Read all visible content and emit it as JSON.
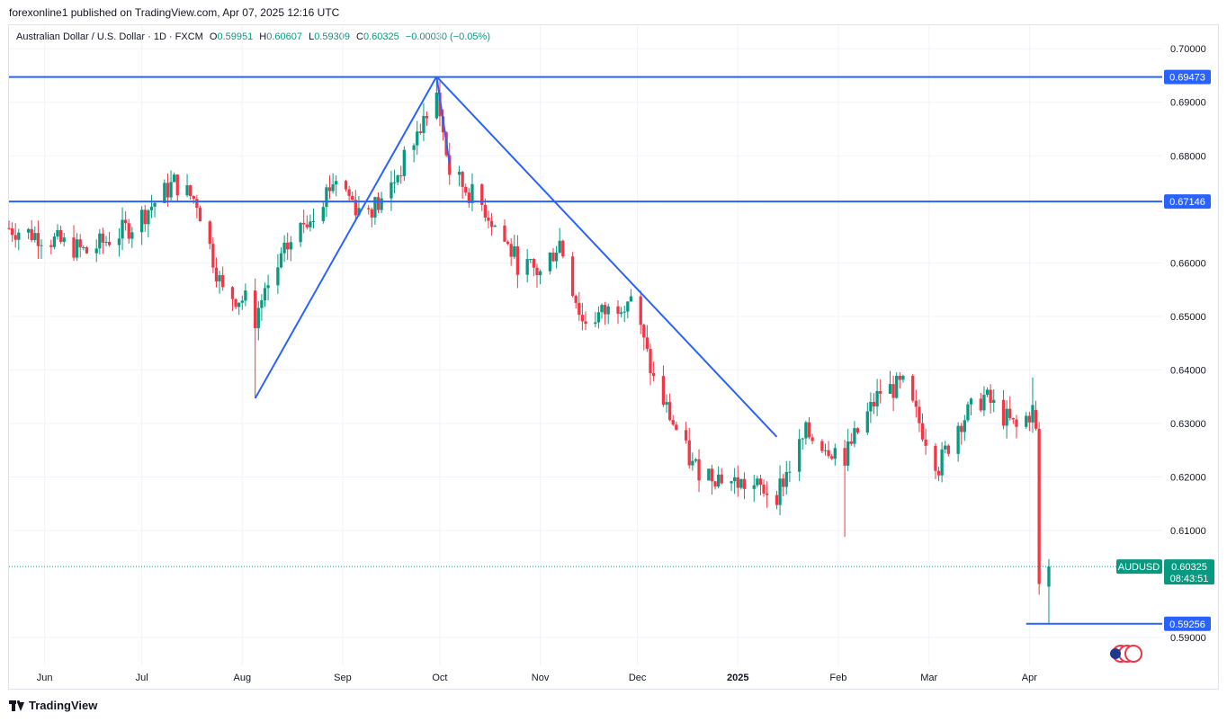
{
  "header": {
    "publisher_line": "forexonline1 published on TradingView.com, Apr 07, 2025 12:16 UTC"
  },
  "legend": {
    "symbol": "Australian Dollar / U.S. Dollar · 1D · FXCM",
    "open_label": "O",
    "open": "0.59951",
    "high_label": "H",
    "high": "0.60607",
    "low_label": "L",
    "low": "0.59309",
    "close_label": "C",
    "close": "0.60325",
    "change": "−0.00030 (−0.05%)"
  },
  "footer": {
    "brand": "TradingView"
  },
  "colors": {
    "up": "#089981",
    "down": "#f23645",
    "trendline": "#2962ff",
    "grid": "#f0f3fa"
  },
  "chart_data": {
    "type": "candlestick",
    "ylim": [
      0.5848,
      0.7044
    ],
    "y_ticks": [
      "0.70000",
      "0.69000",
      "0.68000",
      "0.66000",
      "0.65000",
      "0.64000",
      "0.63000",
      "0.62000",
      "0.61000",
      "0.59000"
    ],
    "y_tick_values": [
      0.7,
      0.69,
      0.68,
      0.66,
      0.65,
      0.64,
      0.63,
      0.62,
      0.61,
      0.59
    ],
    "x_ticks": [
      "Jun",
      "Jul",
      "Aug",
      "Sep",
      "Oct",
      "Nov",
      "Dec",
      "2025",
      "Feb",
      "Mar",
      "Apr"
    ],
    "x_tick_dates": [
      "2024-06-01",
      "2024-07-01",
      "2024-08-01",
      "2024-09-01",
      "2024-10-01",
      "2024-11-01",
      "2024-12-01",
      "2025-01-01",
      "2025-02-01",
      "2025-03-01",
      "2025-04-01"
    ],
    "x_range": [
      "2024-05-21",
      "2025-05-12"
    ],
    "horizontal_levels": [
      {
        "label": "0.69473",
        "value": 0.69473,
        "from": "2024-05-21",
        "to": "2025-05-12"
      },
      {
        "label": "0.67146",
        "value": 0.67146,
        "from": "2024-05-21",
        "to": "2025-05-12"
      },
      {
        "label": "0.59256",
        "value": 0.59256,
        "from": "2025-03-31",
        "to": "2025-05-12"
      }
    ],
    "trendlines": [
      {
        "from": [
          "2024-08-05",
          0.6347
        ],
        "to": [
          "2024-09-30",
          0.6948
        ]
      },
      {
        "from": [
          "2024-09-30",
          0.6948
        ],
        "to": [
          "2024-10-04",
          0.6785
        ]
      },
      {
        "from": [
          "2024-09-30",
          0.6948
        ],
        "to": [
          "2025-01-13",
          0.6275
        ]
      }
    ],
    "last_price": {
      "symbol": "AUDUSD",
      "value": 0.60325,
      "label": "0.60325",
      "countdown": "08:43:51"
    },
    "anchors": [
      [
        "2024-05-21",
        0.6665
      ],
      [
        "2024-05-31",
        0.665
      ],
      [
        "2024-06-14",
        0.662
      ],
      [
        "2024-06-28",
        0.667
      ],
      [
        "2024-07-11",
        0.675
      ],
      [
        "2024-07-18",
        0.6715
      ],
      [
        "2024-07-26",
        0.6545
      ],
      [
        "2024-08-02",
        0.653
      ],
      [
        "2024-08-05",
        0.6495
      ],
      [
        "2024-08-15",
        0.663
      ],
      [
        "2024-08-30",
        0.676
      ],
      [
        "2024-09-06",
        0.67
      ],
      [
        "2024-09-13",
        0.671
      ],
      [
        "2024-09-20",
        0.679
      ],
      [
        "2024-09-30",
        0.6915
      ],
      [
        "2024-10-04",
        0.677
      ],
      [
        "2024-10-15",
        0.67
      ],
      [
        "2024-10-25",
        0.66
      ],
      [
        "2024-11-01",
        0.658
      ],
      [
        "2024-11-07",
        0.664
      ],
      [
        "2024-11-14",
        0.649
      ],
      [
        "2024-11-22",
        0.651
      ],
      [
        "2024-11-29",
        0.654
      ],
      [
        "2024-12-06",
        0.638
      ],
      [
        "2024-12-18",
        0.622
      ],
      [
        "2024-12-31",
        0.619
      ],
      [
        "2025-01-13",
        0.617
      ],
      [
        "2025-01-22",
        0.628
      ],
      [
        "2025-02-03",
        0.624
      ],
      [
        "2025-02-14",
        0.636
      ],
      [
        "2025-02-21",
        0.637
      ],
      [
        "2025-03-04",
        0.622
      ],
      [
        "2025-03-10",
        0.63
      ],
      [
        "2025-03-18",
        0.635
      ],
      [
        "2025-03-28",
        0.629
      ],
      [
        "2025-04-02",
        0.6325
      ],
      [
        "2025-04-04",
        0.5985
      ],
      [
        "2025-04-07",
        0.60325
      ]
    ]
  }
}
